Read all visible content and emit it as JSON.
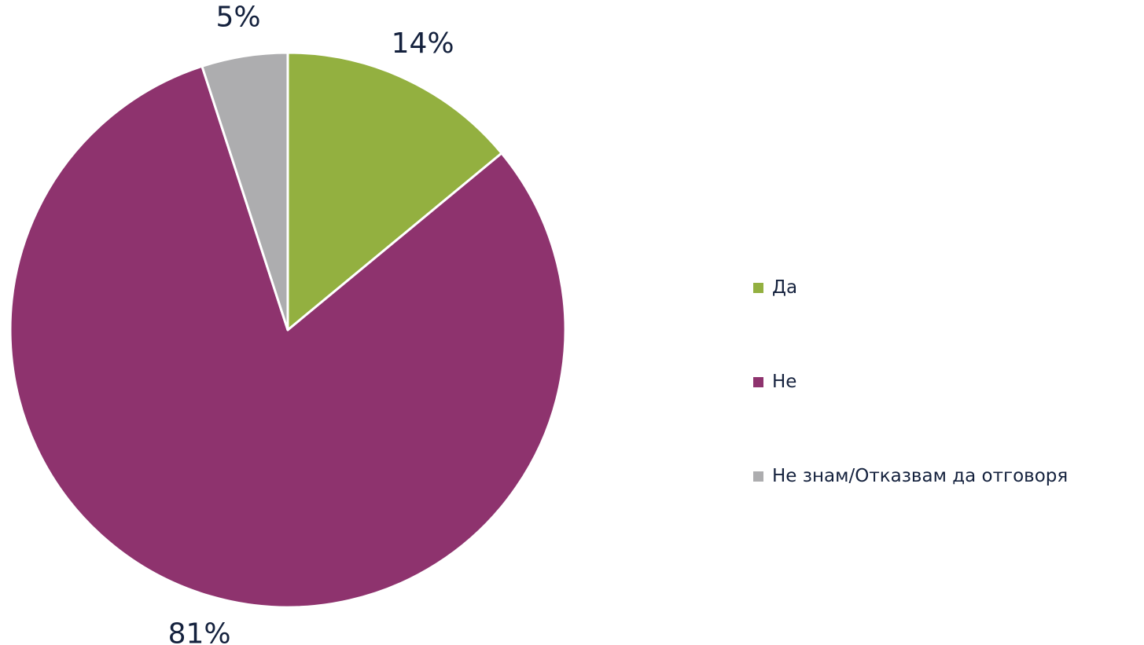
{
  "chart_data": {
    "type": "pie",
    "title": "",
    "categories": [
      "Да",
      "Не",
      "Не знам/Отказвам да отговоря"
    ],
    "values": [
      14,
      81,
      5
    ],
    "data_labels": [
      "14%",
      "81%",
      "5%"
    ],
    "colors": [
      "#93b040",
      "#8e336e",
      "#adadaf"
    ],
    "legend_position": "right"
  },
  "legend": {
    "items": [
      {
        "label": "Да",
        "color": "#93b040"
      },
      {
        "label": "Не",
        "color": "#8e336e"
      },
      {
        "label": "Не знам/Отказвам да отговоря",
        "color": "#adadaf"
      }
    ]
  },
  "colors": {
    "text": "#14213d",
    "background": "#ffffff",
    "slice_border": "#ffffff"
  }
}
